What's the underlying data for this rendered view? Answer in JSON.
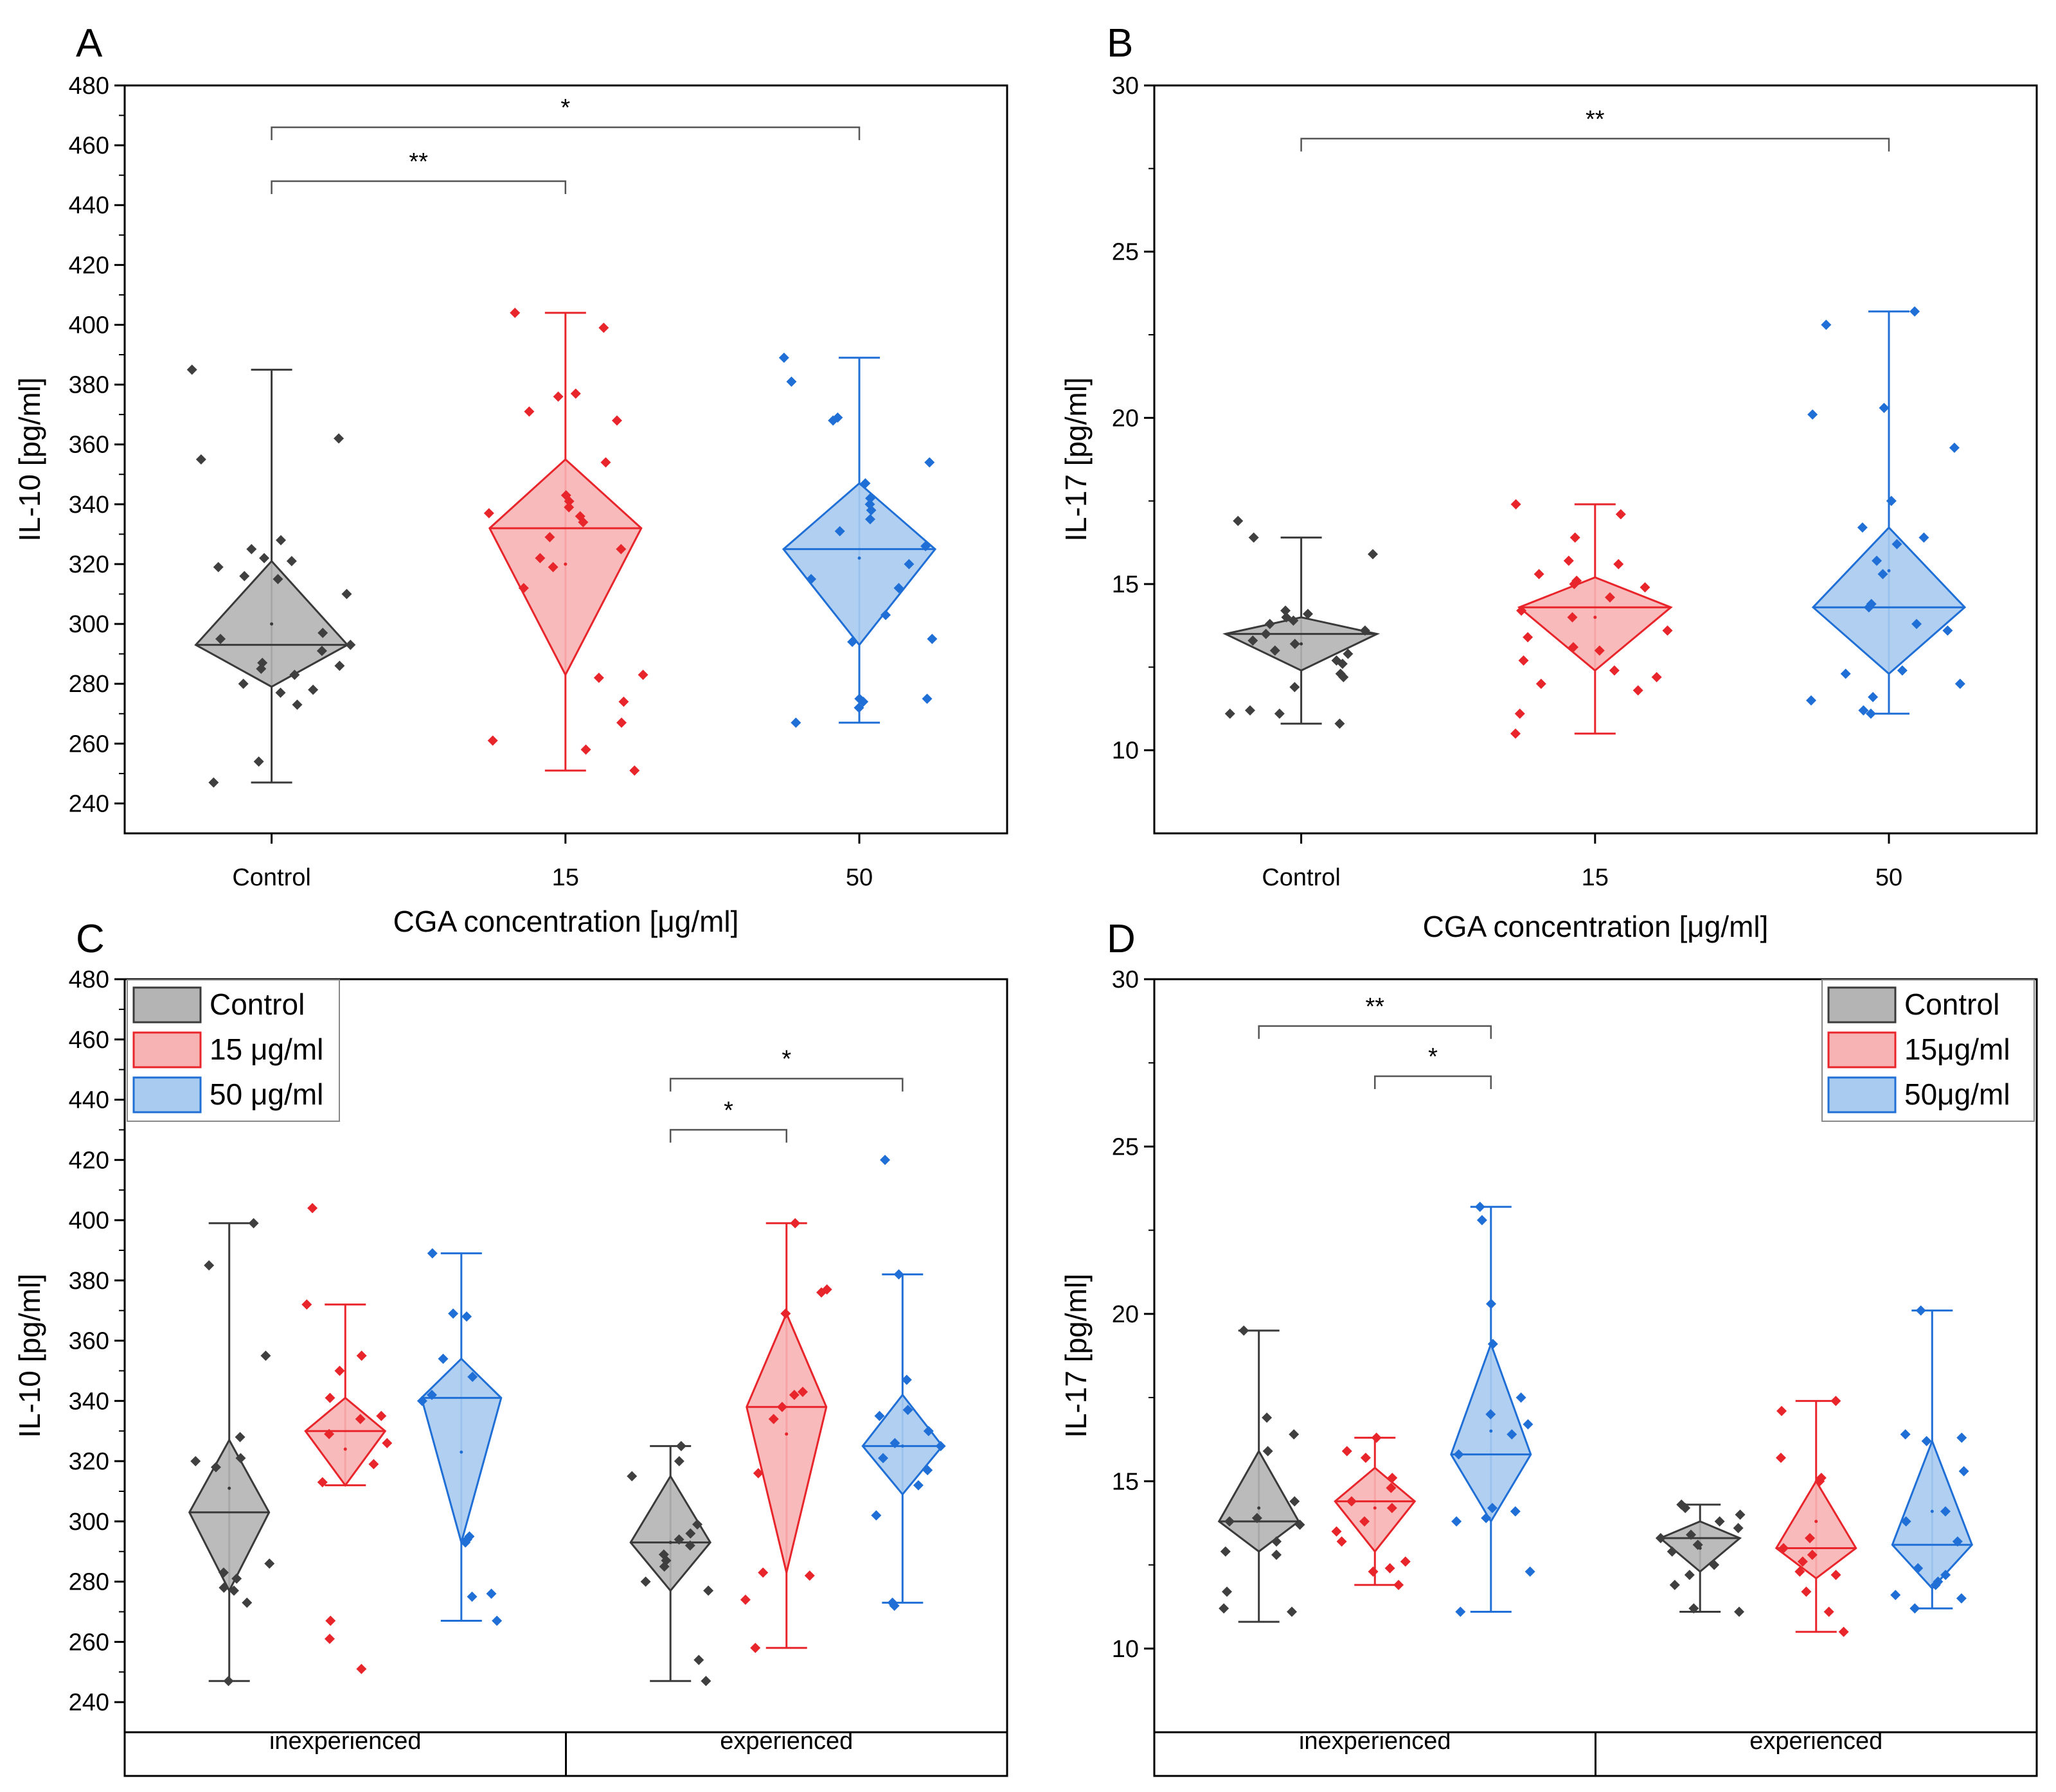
{
  "colors": {
    "control": {
      "fill": "#b4b4b4",
      "stroke": "#3a3a3a",
      "dot": "#3f3f3f"
    },
    "c15": {
      "fill": "#f7b3b3",
      "stroke": "#e8252b",
      "dot": "#e8252b"
    },
    "c50": {
      "fill": "#a9cbef",
      "stroke": "#1f6fd6",
      "dot": "#1f6fd6"
    },
    "axis": "#000000",
    "bracket": "#555555"
  },
  "chart_data": [
    {
      "panel": "A",
      "type": "violin-box",
      "ylabel": "IL-10 [pg/ml]",
      "xlabel": "CGA concentration [μg/ml]",
      "ylim": [
        230,
        480
      ],
      "yticks": [
        240,
        260,
        280,
        300,
        320,
        340,
        360,
        380,
        400,
        420,
        440,
        460,
        480
      ],
      "categories": [
        "Control",
        "15",
        "50"
      ],
      "groups": [
        {
          "name": "Control",
          "color": "control",
          "whisker": [
            247,
            385
          ],
          "diamond": [
            279,
            293,
            321
          ],
          "mean": 300,
          "points": [
            385,
            362,
            355,
            328,
            325,
            322,
            321,
            319,
            316,
            315,
            310,
            297,
            295,
            293,
            291,
            287,
            286,
            285,
            283,
            280,
            278,
            277,
            273,
            254,
            247
          ]
        },
        {
          "name": "15",
          "color": "c15",
          "whisker": [
            251,
            404
          ],
          "diamond": [
            283,
            332,
            355
          ],
          "mean": 320,
          "points": [
            404,
            399,
            377,
            376,
            371,
            368,
            354,
            343,
            341,
            339,
            337,
            336,
            334,
            329,
            325,
            322,
            319,
            312,
            283,
            282,
            274,
            267,
            261,
            258,
            251
          ]
        },
        {
          "name": "50",
          "color": "c50",
          "whisker": [
            267,
            389
          ],
          "diamond": [
            293,
            325,
            347
          ],
          "mean": 322,
          "points": [
            389,
            381,
            369,
            368,
            354,
            347,
            342,
            340,
            338,
            335,
            331,
            326,
            320,
            315,
            312,
            303,
            295,
            294,
            275,
            275,
            274,
            272,
            267
          ]
        }
      ],
      "brackets": [
        {
          "from": 0,
          "to": 1,
          "label": "**",
          "y": 448
        },
        {
          "from": 0,
          "to": 2,
          "label": "*",
          "y": 466
        }
      ]
    },
    {
      "panel": "B",
      "type": "violin-box",
      "ylabel": "IL-17 [pg/ml]",
      "xlabel": "CGA concentration [μg/ml]",
      "ylim": [
        7.5,
        30
      ],
      "yticks": [
        10,
        15,
        20,
        25,
        30
      ],
      "categories": [
        "Control",
        "15",
        "50"
      ],
      "groups": [
        {
          "name": "Control",
          "color": "control",
          "whisker": [
            10.8,
            16.4
          ],
          "diamond": [
            12.4,
            13.5,
            14.0
          ],
          "mean": 13.2,
          "points": [
            16.9,
            16.4,
            15.9,
            14.2,
            14.1,
            14.0,
            13.9,
            13.8,
            13.6,
            13.5,
            13.3,
            13.2,
            13.0,
            12.9,
            12.7,
            12.6,
            12.3,
            12.2,
            11.9,
            11.2,
            11.1,
            11.1,
            10.8
          ]
        },
        {
          "name": "15",
          "color": "c15",
          "whisker": [
            10.5,
            17.4
          ],
          "diamond": [
            12.4,
            14.3,
            15.2
          ],
          "mean": 14.0,
          "points": [
            17.4,
            17.1,
            16.4,
            15.7,
            15.6,
            15.3,
            15.1,
            15.0,
            14.9,
            14.6,
            14.2,
            14.0,
            13.6,
            13.4,
            13.1,
            13.0,
            12.7,
            12.4,
            12.2,
            12.0,
            11.8,
            11.1,
            10.5
          ]
        },
        {
          "name": "50",
          "color": "c50",
          "whisker": [
            11.1,
            23.2
          ],
          "diamond": [
            12.3,
            14.3,
            16.7
          ],
          "mean": 15.4,
          "points": [
            23.2,
            22.8,
            20.3,
            20.1,
            19.1,
            17.5,
            16.7,
            16.4,
            16.2,
            15.7,
            15.3,
            14.4,
            14.3,
            13.8,
            13.6,
            12.4,
            12.3,
            12.0,
            11.6,
            11.5,
            11.2,
            11.1
          ]
        }
      ],
      "brackets": [
        {
          "from": 0,
          "to": 2,
          "label": "**",
          "y": 28.4
        }
      ]
    },
    {
      "panel": "C",
      "type": "violin-box",
      "ylabel": "IL-10 [pg/ml]",
      "ylim": [
        230,
        480
      ],
      "yticks": [
        240,
        260,
        280,
        300,
        320,
        340,
        360,
        380,
        400,
        420,
        440,
        460,
        480
      ],
      "categories": [
        "inexperienced",
        "experienced"
      ],
      "legend": [
        "Control",
        "15 μg/ml",
        "50 μg/ml"
      ],
      "groups": [
        {
          "name": "Control",
          "cat": 0,
          "color": "control",
          "whisker": [
            247,
            399
          ],
          "diamond": [
            277,
            303,
            327
          ],
          "mean": 311,
          "points": [
            399,
            385,
            355,
            328,
            321,
            320,
            318,
            286,
            283,
            281,
            278,
            277,
            273,
            247
          ]
        },
        {
          "name": "15",
          "cat": 0,
          "color": "c15",
          "whisker": [
            312,
            372
          ],
          "diamond": [
            312,
            330,
            341
          ],
          "mean": 324,
          "points": [
            404,
            372,
            355,
            350,
            341,
            335,
            334,
            329,
            326,
            319,
            313,
            267,
            261,
            251
          ]
        },
        {
          "name": "50",
          "cat": 0,
          "color": "c50",
          "whisker": [
            267,
            389
          ],
          "diamond": [
            293,
            341,
            354
          ],
          "mean": 323,
          "points": [
            389,
            369,
            368,
            354,
            348,
            342,
            340,
            295,
            294,
            293,
            276,
            275,
            267
          ]
        },
        {
          "name": "Control",
          "cat": 1,
          "color": "control",
          "whisker": [
            247,
            325
          ],
          "diamond": [
            277,
            293,
            315
          ],
          "mean": 293,
          "points": [
            325,
            320,
            315,
            299,
            296,
            294,
            292,
            289,
            287,
            285,
            280,
            277,
            254,
            247
          ]
        },
        {
          "name": "15",
          "cat": 1,
          "color": "c15",
          "whisker": [
            258,
            399
          ],
          "diamond": [
            283,
            338,
            369
          ],
          "mean": 329,
          "points": [
            399,
            377,
            376,
            369,
            343,
            342,
            338,
            334,
            316,
            283,
            282,
            274,
            258
          ]
        },
        {
          "name": "50",
          "cat": 1,
          "color": "c50",
          "whisker": [
            273,
            382
          ],
          "diamond": [
            309,
            325,
            342
          ],
          "mean": 325,
          "points": [
            420,
            382,
            347,
            337,
            335,
            330,
            326,
            325,
            321,
            317,
            312,
            302,
            273,
            272
          ]
        }
      ],
      "brackets": [
        {
          "from": 3,
          "to": 4,
          "label": "*",
          "y": 430
        },
        {
          "from": 3,
          "to": 5,
          "label": "*",
          "y": 447
        }
      ]
    },
    {
      "panel": "D",
      "type": "violin-box",
      "ylabel": "IL-17 [pg/ml]",
      "ylim": [
        7.5,
        30
      ],
      "yticks": [
        10,
        15,
        20,
        25,
        30
      ],
      "categories": [
        "inexperienced",
        "experienced"
      ],
      "legend": [
        "Control",
        "15μg/ml",
        "50μg/ml"
      ],
      "groups": [
        {
          "name": "Control",
          "cat": 0,
          "color": "control",
          "whisker": [
            10.8,
            19.5
          ],
          "diamond": [
            12.9,
            13.8,
            15.9
          ],
          "mean": 14.2,
          "points": [
            19.5,
            16.9,
            16.4,
            15.9,
            14.4,
            13.9,
            13.8,
            13.7,
            13.2,
            12.9,
            12.8,
            11.7,
            11.2,
            11.1
          ]
        },
        {
          "name": "15",
          "cat": 0,
          "color": "c15",
          "whisker": [
            11.9,
            16.3
          ],
          "diamond": [
            12.9,
            14.4,
            15.4
          ],
          "mean": 14.2,
          "points": [
            16.3,
            15.9,
            15.7,
            15.1,
            14.8,
            14.4,
            14.2,
            13.8,
            13.5,
            13.2,
            12.6,
            12.4,
            12.3,
            11.9
          ]
        },
        {
          "name": "50",
          "cat": 0,
          "color": "c50",
          "whisker": [
            11.1,
            23.2
          ],
          "diamond": [
            13.8,
            15.8,
            19.1
          ],
          "mean": 16.5,
          "points": [
            23.2,
            22.8,
            20.3,
            19.1,
            17.5,
            17.0,
            16.7,
            16.4,
            15.8,
            14.2,
            14.1,
            13.9,
            13.8,
            12.3,
            11.1
          ]
        },
        {
          "name": "Control",
          "cat": 1,
          "color": "control",
          "whisker": [
            11.1,
            14.3
          ],
          "diamond": [
            12.3,
            13.3,
            13.8
          ],
          "mean": 13.0,
          "points": [
            14.3,
            14.2,
            14.0,
            13.8,
            13.6,
            13.4,
            13.3,
            13.1,
            12.9,
            12.5,
            12.2,
            11.9,
            11.2,
            11.1
          ]
        },
        {
          "name": "15",
          "cat": 1,
          "color": "c15",
          "whisker": [
            10.5,
            17.4
          ],
          "diamond": [
            12.1,
            13.0,
            15.0
          ],
          "mean": 13.8,
          "points": [
            17.4,
            17.1,
            15.7,
            15.1,
            15.0,
            13.3,
            13.0,
            12.8,
            12.6,
            12.3,
            12.2,
            11.7,
            11.1,
            10.5
          ]
        },
        {
          "name": "50",
          "cat": 1,
          "color": "c50",
          "whisker": [
            11.2,
            20.1
          ],
          "diamond": [
            11.8,
            13.1,
            16.2
          ],
          "mean": 14.1,
          "points": [
            20.1,
            16.4,
            16.3,
            16.2,
            15.3,
            14.1,
            13.8,
            13.2,
            12.4,
            12.2,
            12.0,
            11.9,
            11.6,
            11.5,
            11.2
          ]
        }
      ],
      "brackets": [
        {
          "from": 0,
          "to": 2,
          "label": "**",
          "y": 28.6
        },
        {
          "from": 1,
          "to": 2,
          "label": "*",
          "y": 27.1
        }
      ]
    }
  ]
}
